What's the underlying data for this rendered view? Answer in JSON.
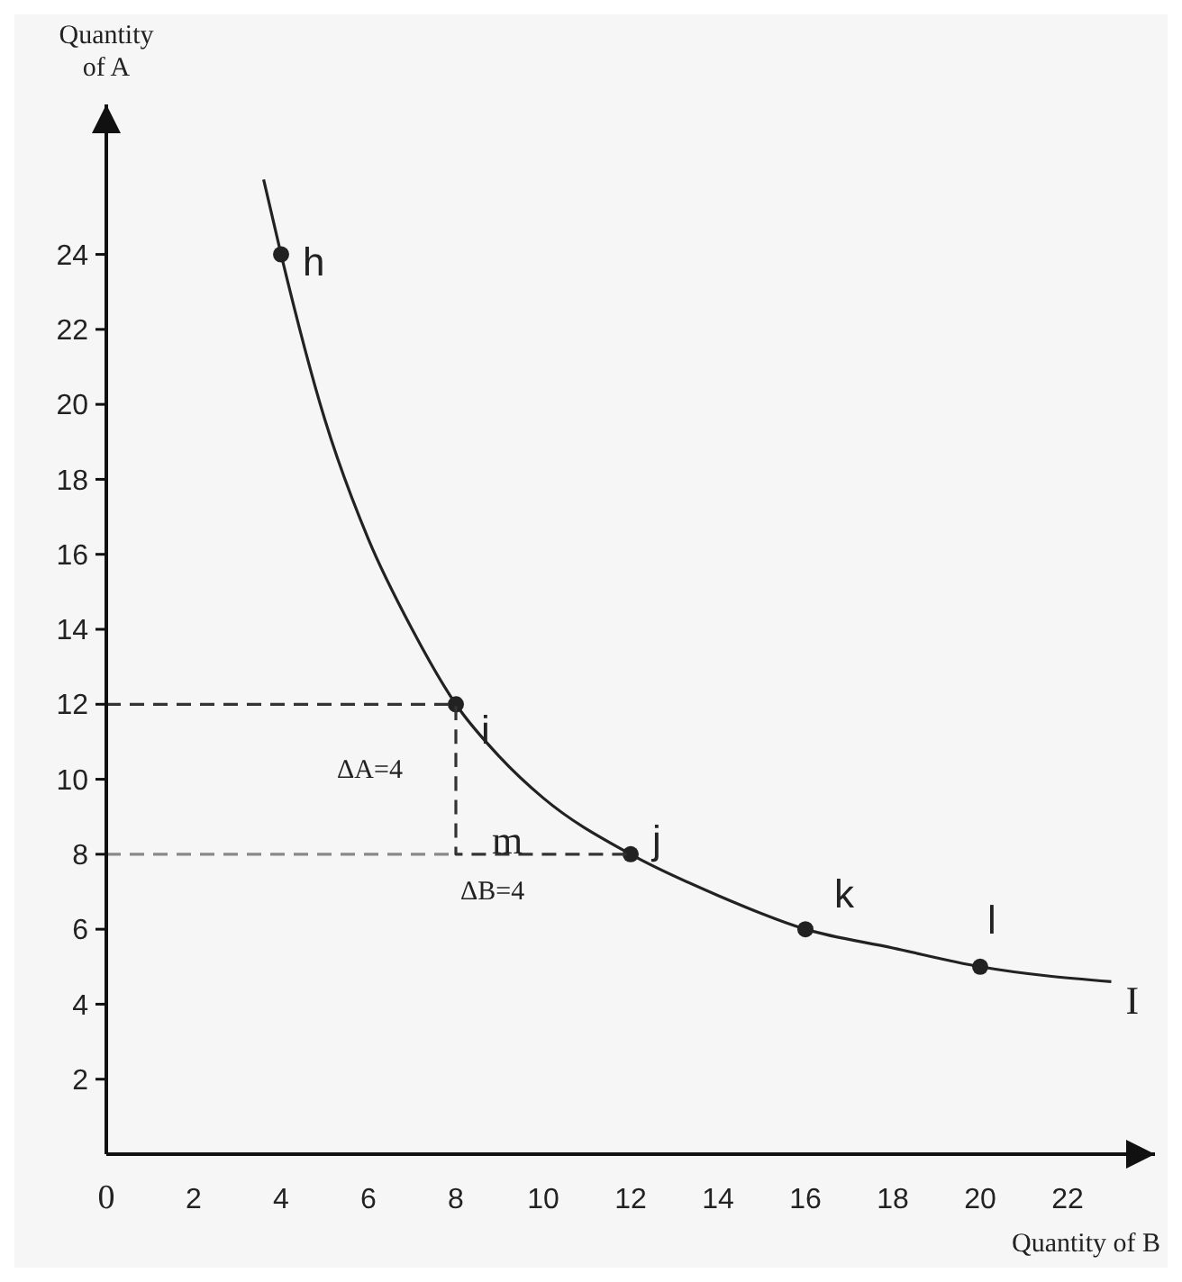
{
  "chart_data": {
    "type": "line",
    "xlabel": "Quantity of B",
    "ylabel": "Quantity of A",
    "xlim": [
      0,
      24
    ],
    "ylim": [
      0,
      28
    ],
    "xticks": [
      {
        "value": 0,
        "label": "0"
      },
      2,
      4,
      6,
      8,
      10,
      12,
      14,
      16,
      18,
      20,
      22
    ],
    "yticks": [
      2,
      4,
      6,
      8,
      10,
      12,
      14,
      16,
      18,
      20,
      22,
      24
    ],
    "grid": false,
    "series": [
      {
        "color": "#222222",
        "line_style": "solid",
        "marker": "none",
        "x": [
          3.6,
          4,
          5,
          6,
          7,
          8,
          9,
          10,
          12,
          14,
          16,
          18,
          20,
          23
        ],
        "values": [
          26,
          24,
          19.6,
          16.4,
          14,
          12,
          10.6,
          9.5,
          8,
          6.9,
          6,
          5.5,
          5,
          4.6
        ]
      },
      {
        "type": "scatter",
        "color": "#222222",
        "marker": "circle",
        "x": [
          4,
          8,
          12,
          16,
          20
        ],
        "values": [
          24,
          12,
          8,
          6,
          5
        ]
      },
      {
        "type": "line",
        "color": "#333333",
        "line_style": "dashed",
        "marker": "none",
        "x": [
          0,
          8,
          8,
          12
        ],
        "values": [
          12,
          12,
          8,
          8
        ]
      },
      {
        "type": "line",
        "color": "#888888",
        "line_style": "dashed",
        "marker": "none",
        "x": [
          0,
          8
        ],
        "values": [
          8,
          8
        ]
      }
    ],
    "annotations": [
      {
        "text": "h",
        "x": 4,
        "y": 24
      },
      {
        "text": "i",
        "x": 8,
        "y": 12
      },
      {
        "text": "j",
        "x": 12,
        "y": 8
      },
      {
        "text": "k",
        "x": 16,
        "y": 6
      },
      {
        "text": "l",
        "x": 20,
        "y": 5
      },
      {
        "text": "I",
        "x": 23,
        "y": 4.6
      },
      {
        "text": "ΔA=4",
        "x": 8,
        "y": 10
      },
      {
        "text": "m",
        "x": 8,
        "y": 8
      },
      {
        "text": "ΔB=4",
        "x": 10,
        "y": 8
      }
    ]
  }
}
